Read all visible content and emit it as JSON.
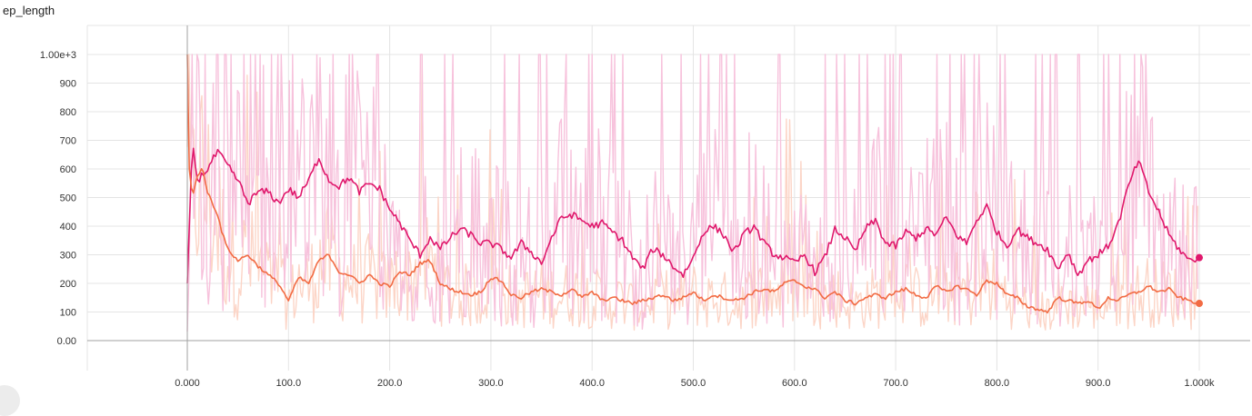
{
  "chart_data": {
    "type": "line",
    "title": "ep_length",
    "xlim": [
      0,
      1000
    ],
    "ylim": [
      -100,
      1080
    ],
    "grid": true,
    "x_ticks": [
      {
        "value": 0,
        "label": "0.000"
      },
      {
        "value": 100,
        "label": "100.0"
      },
      {
        "value": 200,
        "label": "200.0"
      },
      {
        "value": 300,
        "label": "300.0"
      },
      {
        "value": 400,
        "label": "400.0"
      },
      {
        "value": 500,
        "label": "500.0"
      },
      {
        "value": 600,
        "label": "600.0"
      },
      {
        "value": 700,
        "label": "700.0"
      },
      {
        "value": 800,
        "label": "800.0"
      },
      {
        "value": 900,
        "label": "900.0"
      },
      {
        "value": 1000,
        "label": "1.000k"
      }
    ],
    "y_ticks": [
      {
        "value": 0,
        "label": "0.00"
      },
      {
        "value": 100,
        "label": "100"
      },
      {
        "value": 200,
        "label": "200"
      },
      {
        "value": 300,
        "label": "300"
      },
      {
        "value": 400,
        "label": "400"
      },
      {
        "value": 500,
        "label": "500"
      },
      {
        "value": 600,
        "label": "600"
      },
      {
        "value": 700,
        "label": "700"
      },
      {
        "value": 800,
        "label": "800"
      },
      {
        "value": 900,
        "label": "900"
      },
      {
        "value": 1000,
        "label": "1.00e+3"
      }
    ],
    "series": [
      {
        "color": "#e0186c",
        "raw_color": "#f7c2dc",
        "x": [
          0,
          5,
          10,
          20,
          30,
          40,
          50,
          60,
          70,
          80,
          90,
          100,
          110,
          120,
          130,
          140,
          150,
          160,
          170,
          180,
          190,
          200,
          210,
          220,
          230,
          240,
          250,
          260,
          270,
          280,
          290,
          300,
          310,
          320,
          330,
          340,
          350,
          360,
          370,
          380,
          390,
          400,
          410,
          420,
          430,
          440,
          450,
          460,
          470,
          480,
          490,
          500,
          510,
          520,
          530,
          540,
          550,
          560,
          570,
          580,
          590,
          600,
          610,
          620,
          630,
          640,
          650,
          660,
          670,
          680,
          690,
          700,
          710,
          720,
          730,
          740,
          750,
          760,
          770,
          780,
          790,
          800,
          810,
          820,
          830,
          840,
          850,
          860,
          870,
          880,
          890,
          900,
          910,
          920,
          930,
          940,
          950,
          960,
          970,
          980,
          990,
          1000
        ],
        "y": [
          200,
          700,
          560,
          600,
          660,
          610,
          560,
          480,
          520,
          520,
          480,
          530,
          500,
          560,
          640,
          560,
          540,
          570,
          520,
          550,
          530,
          460,
          410,
          350,
          300,
          360,
          320,
          360,
          390,
          370,
          340,
          340,
          320,
          290,
          340,
          310,
          270,
          360,
          430,
          440,
          420,
          400,
          410,
          380,
          350,
          290,
          250,
          320,
          300,
          260,
          230,
          290,
          380,
          400,
          370,
          310,
          370,
          400,
          340,
          300,
          290,
          270,
          300,
          240,
          290,
          390,
          360,
          310,
          390,
          420,
          340,
          330,
          380,
          360,
          390,
          370,
          430,
          370,
          340,
          420,
          470,
          380,
          330,
          390,
          360,
          340,
          320,
          250,
          310,
          230,
          280,
          300,
          330,
          410,
          540,
          630,
          520,
          450,
          370,
          320,
          280,
          290
        ]
      },
      {
        "color": "#f26b43",
        "raw_color": "#fcd5c7",
        "x": [
          0,
          2,
          5,
          10,
          15,
          20,
          25,
          30,
          35,
          40,
          50,
          60,
          70,
          80,
          90,
          100,
          110,
          120,
          130,
          140,
          150,
          160,
          170,
          180,
          190,
          200,
          210,
          220,
          230,
          240,
          250,
          260,
          270,
          280,
          290,
          300,
          310,
          320,
          330,
          340,
          350,
          360,
          370,
          380,
          390,
          400,
          410,
          420,
          430,
          440,
          450,
          460,
          470,
          480,
          490,
          500,
          510,
          520,
          530,
          540,
          550,
          560,
          570,
          580,
          590,
          600,
          610,
          620,
          630,
          640,
          650,
          660,
          670,
          680,
          690,
          700,
          710,
          720,
          730,
          740,
          750,
          760,
          770,
          780,
          790,
          800,
          810,
          820,
          830,
          840,
          850,
          860,
          870,
          880,
          890,
          900,
          910,
          920,
          930,
          940,
          950,
          960,
          970,
          980,
          990,
          1000
        ],
        "y": [
          1000,
          600,
          500,
          580,
          600,
          520,
          480,
          440,
          370,
          320,
          280,
          300,
          260,
          230,
          200,
          140,
          220,
          200,
          280,
          300,
          240,
          230,
          200,
          230,
          200,
          190,
          240,
          230,
          270,
          280,
          200,
          180,
          170,
          160,
          170,
          220,
          210,
          160,
          150,
          170,
          180,
          170,
          160,
          180,
          150,
          170,
          140,
          150,
          140,
          130,
          140,
          150,
          160,
          140,
          150,
          170,
          140,
          160,
          150,
          140,
          150,
          170,
          180,
          170,
          200,
          210,
          190,
          180,
          150,
          170,
          140,
          130,
          150,
          160,
          150,
          170,
          180,
          160,
          150,
          190,
          170,
          190,
          180,
          160,
          210,
          200,
          160,
          150,
          120,
          110,
          100,
          150,
          140,
          130,
          140,
          110,
          150,
          140,
          160,
          170,
          190,
          170,
          180,
          150,
          140,
          130
        ]
      }
    ]
  }
}
